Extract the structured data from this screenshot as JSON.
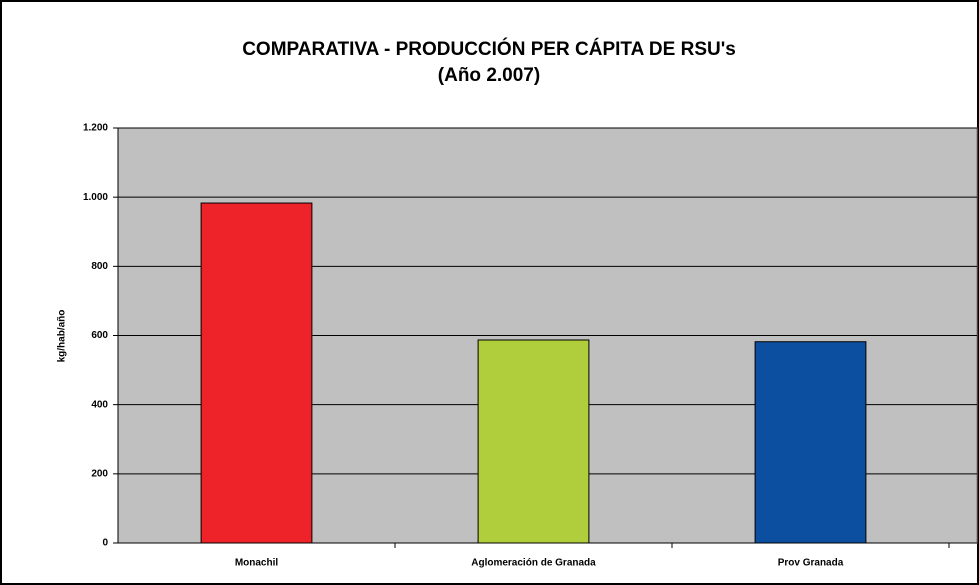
{
  "chart_data": {
    "type": "bar",
    "title": "COMPARATIVA - PRODUCCIÓN PER CÁPITA DE RSU's",
    "subtitle": "(Año 2.007)",
    "y_label": "kg/hab/año",
    "categories": [
      "Monachil",
      "Aglomeración de Granada",
      "Prov Granada"
    ],
    "values": [
      983,
      587,
      582
    ],
    "colors": [
      "#ee2229",
      "#b0cd3c",
      "#0c4fa0"
    ],
    "ylim": [
      0,
      1200
    ],
    "yticks": [
      0,
      200,
      400,
      600,
      800,
      {
        "value": 1000,
        "label": "1.000"
      },
      {
        "value": 1200,
        "label": "1.200"
      }
    ],
    "grid": true
  }
}
